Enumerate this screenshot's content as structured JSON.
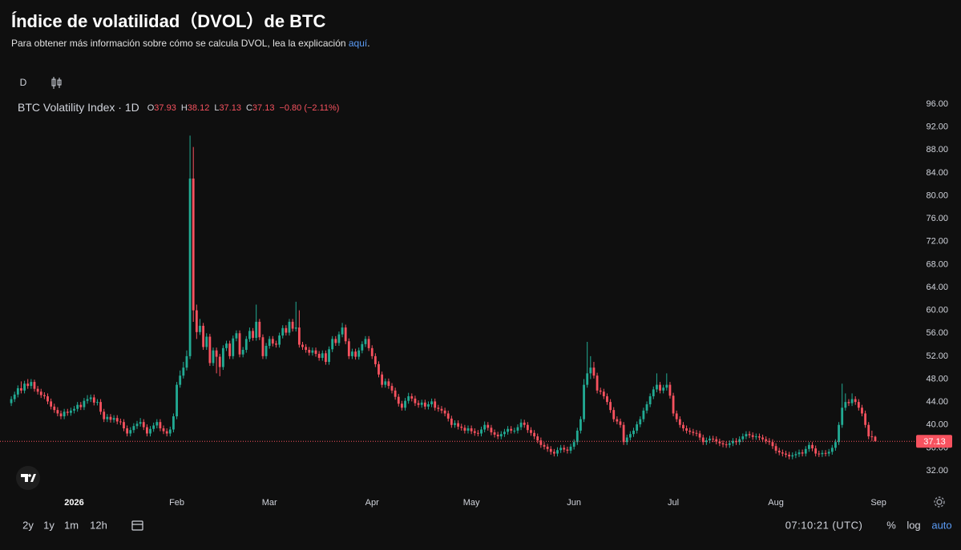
{
  "header": {
    "title": "Índice de volatilidad（DVOL）de BTC",
    "note": "Para obtener más información sobre cómo se calcula DVOL, lea la explicación ",
    "link": "aquí",
    "note_end": "."
  },
  "toolbar": {
    "interval": "D"
  },
  "chart_data": {
    "type": "candlestick",
    "title": "BTC Volatility Index · 1D",
    "legend_labels": [
      "O",
      "H",
      "L",
      "C"
    ],
    "change": "−0.80 (−2.11%)",
    "open": [
      43.8,
      44.5,
      45.3,
      46.4,
      46.0,
      47.2,
      46.8,
      47.5,
      46.3,
      45.8,
      45.2,
      45.0,
      44.1,
      43.2,
      42.6,
      42.0,
      41.5,
      42.3,
      42.1,
      42.5,
      42.8,
      43.5,
      43.1,
      44.2,
      44.5,
      44.8,
      43.9,
      44.0,
      42.3,
      41.0,
      41.4,
      40.9,
      41.2,
      40.6,
      40.5,
      39.4,
      38.5,
      39.1,
      39.8,
      40.2,
      40.5,
      39.6,
      38.5,
      39.3,
      39.9,
      40.5,
      39.4,
      38.9,
      38.5,
      39.2,
      41.5,
      47.0,
      48.6,
      50.0,
      52.0,
      83.0,
      60.0,
      56.2,
      57.3,
      53.6,
      55.4,
      50.8,
      53.0,
      51.9,
      50.1,
      53.4,
      54.2,
      52.0,
      55.1,
      56.0,
      52.3,
      53.1,
      55.0,
      56.4,
      55.2,
      58.0,
      55.3,
      52.0,
      53.8,
      55.0,
      54.2,
      54.0,
      55.6,
      56.9,
      56.1,
      58.0,
      56.8,
      57.0,
      54.0,
      53.6,
      53.1,
      52.6,
      53.0,
      52.4,
      51.7,
      52.5,
      51.0,
      53.2,
      55.0,
      54.3,
      55.8,
      57.0,
      54.6,
      52.0,
      52.8,
      51.9,
      53.0,
      54.1,
      55.0,
      53.4,
      52.0,
      50.6,
      48.8,
      47.0,
      47.6,
      46.8,
      46.0,
      44.9,
      43.7,
      43.0,
      44.2,
      45.0,
      44.6,
      43.8,
      43.5,
      43.9,
      43.2,
      43.6,
      44.1,
      43.0,
      42.8,
      42.5,
      42.0,
      41.1,
      40.0,
      40.3,
      39.7,
      39.5,
      39.0,
      39.4,
      38.9,
      38.6,
      38.5,
      39.2,
      40.0,
      39.5,
      38.7,
      38.3,
      38.0,
      38.4,
      38.8,
      39.3,
      39.0,
      39.0,
      39.6,
      40.4,
      40.0,
      39.1,
      38.6,
      38.0,
      37.3,
      36.5,
      36.2,
      35.8,
      35.3,
      35.0,
      35.6,
      36.0,
      35.7,
      35.5,
      36.2,
      37.0,
      39.0,
      41.0,
      47.0,
      49.0,
      50.0,
      48.6,
      46.0,
      45.8,
      45.0,
      44.0,
      42.6,
      41.0,
      40.6,
      40.0,
      37.0,
      37.8,
      38.4,
      39.0,
      40.1,
      41.0,
      42.5,
      43.6,
      45.0,
      46.2,
      47.0,
      46.0,
      46.5,
      47.0,
      45.1,
      42.0,
      41.0,
      40.0,
      39.4,
      39.0,
      38.8,
      38.6,
      38.5,
      37.8,
      37.0,
      37.3,
      37.6,
      37.5,
      37.1,
      36.8,
      36.6,
      36.5,
      36.8,
      37.2,
      37.0,
      37.5,
      38.0,
      38.4,
      38.2,
      37.9,
      38.0,
      37.8,
      37.5,
      37.2,
      37.0,
      36.3,
      35.5,
      35.2,
      35.0,
      34.8,
      34.5,
      34.7,
      34.9,
      35.2,
      35.0,
      35.8,
      36.5,
      35.9,
      35.0,
      34.9,
      35.1,
      35.0,
      35.3,
      36.0,
      37.0,
      40.0,
      43.0,
      44.0,
      43.8,
      44.5,
      44.0,
      43.0,
      42.0,
      40.0,
      38.0,
      37.93
    ],
    "high": [
      45.0,
      45.8,
      46.9,
      47.6,
      47.7,
      48.0,
      48.0,
      47.9,
      46.8,
      46.3,
      45.7,
      45.5,
      44.6,
      43.7,
      43.1,
      42.5,
      42.8,
      42.8,
      43.0,
      43.3,
      44.0,
      44.0,
      44.7,
      45.2,
      45.3,
      45.3,
      44.5,
      44.5,
      42.8,
      41.9,
      41.9,
      41.7,
      41.7,
      41.1,
      41.0,
      39.9,
      39.6,
      40.3,
      40.7,
      41.2,
      41.0,
      40.1,
      39.8,
      40.4,
      41.0,
      41.0,
      39.9,
      39.4,
      39.7,
      42.0,
      47.5,
      49.5,
      51.0,
      53.0,
      90.5,
      88.5,
      61.0,
      58.5,
      57.8,
      56.0,
      55.9,
      53.5,
      53.5,
      52.4,
      53.9,
      54.7,
      54.7,
      55.6,
      56.5,
      56.5,
      53.6,
      55.5,
      57.0,
      56.9,
      61.0,
      58.5,
      55.8,
      54.3,
      55.5,
      55.5,
      54.7,
      56.1,
      57.4,
      57.4,
      58.5,
      58.5,
      61.5,
      60.0,
      54.5,
      54.1,
      53.6,
      53.5,
      53.5,
      52.9,
      53.0,
      53.0,
      53.7,
      55.5,
      55.5,
      56.3,
      57.8,
      57.5,
      55.1,
      53.3,
      53.3,
      53.5,
      54.6,
      55.5,
      55.5,
      53.9,
      52.5,
      51.1,
      49.3,
      48.1,
      48.1,
      47.3,
      46.5,
      45.4,
      44.2,
      44.7,
      45.6,
      45.5,
      45.1,
      44.3,
      44.4,
      44.4,
      44.1,
      44.6,
      44.6,
      43.5,
      43.3,
      43.0,
      42.5,
      41.6,
      40.8,
      40.8,
      40.2,
      40.0,
      39.9,
      39.9,
      39.4,
      39.1,
      39.7,
      40.6,
      40.5,
      40.0,
      39.2,
      38.8,
      38.9,
      39.3,
      39.8,
      39.8,
      39.5,
      40.1,
      41.0,
      40.9,
      40.5,
      39.6,
      39.1,
      38.5,
      37.8,
      37.0,
      36.7,
      36.3,
      35.8,
      36.1,
      36.5,
      36.5,
      36.2,
      36.7,
      37.5,
      39.5,
      41.5,
      48.0,
      54.5,
      52.0,
      51.0,
      49.1,
      46.5,
      46.3,
      45.5,
      44.5,
      43.1,
      41.5,
      41.1,
      40.5,
      38.3,
      38.9,
      39.5,
      40.6,
      41.5,
      43.0,
      44.1,
      45.5,
      46.7,
      49.0,
      47.5,
      47.0,
      49.0,
      47.5,
      45.6,
      42.5,
      41.5,
      40.5,
      39.9,
      39.5,
      39.3,
      39.1,
      39.0,
      38.3,
      37.8,
      38.1,
      38.1,
      38.0,
      37.6,
      37.3,
      37.1,
      37.3,
      37.7,
      37.7,
      38.0,
      38.5,
      38.9,
      38.9,
      38.7,
      38.5,
      38.5,
      38.3,
      38.0,
      37.7,
      37.5,
      36.8,
      36.0,
      35.7,
      35.5,
      35.3,
      35.2,
      35.4,
      35.7,
      35.7,
      36.3,
      37.0,
      37.0,
      36.4,
      35.5,
      35.6,
      35.6,
      35.8,
      36.5,
      37.5,
      40.5,
      47.2,
      45.5,
      44.5,
      45.5,
      45.0,
      44.5,
      43.5,
      42.5,
      40.5,
      39.0,
      38.12
    ],
    "low": [
      43.3,
      44.0,
      44.8,
      45.5,
      45.5,
      46.3,
      46.3,
      45.8,
      45.3,
      44.7,
      44.5,
      43.6,
      42.7,
      42.1,
      41.5,
      41.0,
      41.0,
      41.6,
      41.6,
      42.0,
      42.3,
      42.6,
      42.6,
      43.7,
      44.0,
      43.4,
      43.4,
      41.8,
      40.5,
      40.5,
      40.4,
      40.4,
      40.1,
      40.0,
      38.9,
      38.0,
      38.0,
      38.6,
      39.3,
      39.7,
      39.1,
      38.0,
      38.0,
      38.8,
      39.4,
      38.9,
      38.4,
      38.0,
      38.0,
      38.7,
      41.0,
      46.5,
      48.1,
      49.5,
      51.5,
      58.0,
      55.0,
      55.7,
      53.1,
      53.1,
      50.3,
      50.3,
      49.0,
      48.5,
      49.6,
      52.9,
      51.5,
      51.5,
      54.6,
      51.8,
      51.8,
      52.6,
      54.5,
      54.7,
      54.7,
      54.8,
      51.5,
      51.5,
      53.3,
      53.7,
      53.5,
      53.5,
      55.1,
      55.6,
      55.6,
      56.3,
      56.3,
      53.5,
      53.1,
      52.6,
      52.1,
      52.1,
      51.9,
      51.2,
      51.2,
      50.5,
      50.5,
      52.7,
      53.8,
      53.8,
      55.3,
      54.1,
      51.5,
      51.5,
      51.4,
      51.4,
      52.5,
      53.6,
      52.9,
      51.5,
      50.1,
      48.3,
      46.5,
      46.5,
      46.3,
      45.5,
      44.4,
      43.2,
      42.5,
      42.5,
      43.7,
      44.1,
      43.3,
      43.0,
      43.0,
      42.7,
      42.7,
      43.1,
      42.5,
      42.3,
      42.0,
      41.5,
      40.6,
      39.5,
      39.5,
      39.2,
      39.0,
      38.5,
      38.5,
      38.4,
      38.1,
      38.0,
      38.0,
      38.7,
      39.0,
      38.2,
      37.8,
      37.5,
      37.5,
      37.9,
      38.3,
      38.5,
      38.5,
      38.5,
      39.1,
      39.5,
      38.6,
      38.1,
      37.5,
      36.8,
      36.0,
      35.7,
      35.3,
      34.8,
      34.5,
      34.5,
      35.1,
      35.2,
      35.0,
      35.0,
      35.7,
      36.5,
      38.5,
      40.5,
      46.5,
      48.0,
      48.1,
      45.5,
      45.3,
      44.5,
      43.5,
      42.1,
      40.5,
      40.1,
      39.5,
      36.5,
      36.5,
      37.3,
      37.9,
      38.5,
      39.6,
      40.5,
      42.0,
      43.1,
      44.5,
      45.7,
      45.5,
      45.5,
      46.0,
      44.6,
      41.5,
      40.5,
      39.5,
      38.9,
      38.5,
      38.3,
      38.1,
      38.0,
      37.3,
      36.5,
      36.5,
      36.8,
      37.0,
      36.6,
      36.3,
      36.1,
      36.0,
      36.0,
      36.3,
      36.5,
      36.5,
      37.0,
      37.5,
      37.7,
      37.4,
      37.4,
      37.3,
      37.0,
      36.7,
      36.5,
      35.8,
      35.0,
      34.7,
      34.5,
      34.3,
      34.0,
      34.0,
      34.2,
      34.4,
      34.5,
      34.5,
      35.3,
      35.4,
      34.5,
      34.4,
      34.4,
      34.5,
      34.5,
      34.8,
      35.5,
      36.5,
      39.5,
      42.5,
      43.3,
      43.3,
      43.5,
      42.5,
      41.5,
      39.5,
      37.5,
      37.2,
      37.13
    ],
    "close": [
      44.5,
      45.3,
      46.4,
      46.0,
      47.2,
      46.8,
      47.5,
      46.3,
      45.8,
      45.2,
      45.0,
      44.1,
      43.2,
      42.6,
      42.0,
      41.5,
      42.3,
      42.1,
      42.5,
      42.8,
      43.5,
      43.1,
      44.2,
      44.5,
      44.8,
      43.9,
      44.0,
      42.3,
      41.0,
      41.4,
      40.9,
      41.2,
      40.6,
      40.5,
      39.4,
      38.5,
      39.1,
      39.8,
      40.2,
      40.5,
      39.6,
      38.5,
      39.3,
      39.9,
      40.5,
      39.4,
      38.9,
      38.5,
      39.2,
      41.5,
      47.0,
      48.6,
      50.0,
      52.0,
      83.0,
      60.0,
      56.2,
      57.3,
      53.6,
      55.4,
      50.8,
      53.0,
      51.9,
      50.1,
      53.4,
      54.2,
      52.0,
      55.1,
      56.0,
      52.3,
      53.1,
      55.0,
      56.4,
      55.2,
      58.0,
      55.3,
      52.0,
      53.8,
      55.0,
      54.2,
      54.0,
      55.6,
      56.9,
      56.1,
      58.0,
      56.8,
      57.0,
      54.0,
      53.6,
      53.1,
      52.6,
      53.0,
      52.4,
      51.7,
      52.5,
      51.0,
      53.2,
      55.0,
      54.3,
      55.8,
      57.0,
      54.6,
      52.0,
      52.8,
      51.9,
      53.0,
      54.1,
      55.0,
      53.4,
      52.0,
      50.6,
      48.8,
      47.0,
      47.6,
      46.8,
      46.0,
      44.9,
      43.7,
      43.0,
      44.2,
      45.0,
      44.6,
      43.8,
      43.5,
      43.9,
      43.2,
      43.6,
      44.1,
      43.0,
      42.8,
      42.5,
      42.0,
      41.1,
      40.0,
      40.3,
      39.7,
      39.5,
      39.0,
      39.4,
      38.9,
      38.6,
      38.5,
      39.2,
      40.0,
      39.5,
      38.7,
      38.3,
      38.0,
      38.4,
      38.8,
      39.3,
      39.0,
      39.0,
      39.6,
      40.4,
      40.0,
      39.1,
      38.6,
      38.0,
      37.3,
      36.5,
      36.2,
      35.8,
      35.3,
      35.0,
      35.6,
      36.0,
      35.7,
      35.5,
      36.2,
      37.0,
      39.0,
      41.0,
      47.0,
      49.0,
      50.0,
      48.6,
      46.0,
      45.8,
      45.0,
      44.0,
      42.6,
      41.0,
      40.6,
      40.0,
      37.0,
      37.8,
      38.4,
      39.0,
      40.1,
      41.0,
      42.5,
      43.6,
      45.0,
      46.2,
      47.0,
      46.0,
      46.5,
      47.0,
      45.1,
      42.0,
      41.0,
      40.0,
      39.4,
      39.0,
      38.8,
      38.6,
      38.5,
      37.8,
      37.0,
      37.3,
      37.6,
      37.5,
      37.1,
      36.8,
      36.6,
      36.5,
      36.8,
      37.2,
      37.0,
      37.5,
      38.0,
      38.4,
      38.2,
      37.9,
      38.0,
      37.8,
      37.5,
      37.2,
      37.0,
      36.3,
      35.5,
      35.2,
      35.0,
      34.8,
      34.5,
      34.7,
      34.9,
      35.2,
      35.0,
      35.8,
      36.5,
      35.9,
      35.0,
      34.9,
      35.1,
      35.0,
      35.3,
      36.0,
      37.0,
      40.0,
      43.0,
      44.0,
      43.8,
      44.5,
      44.0,
      43.0,
      42.0,
      40.0,
      38.0,
      37.93,
      37.13
    ],
    "up_color": "#22ab94",
    "down_color": "#f7525f",
    "xlim": [
      -0.5,
      262.5
    ],
    "xticks": [
      {
        "value": 19,
        "label": "2026"
      },
      {
        "value": 50,
        "label": "Feb"
      },
      {
        "value": 78,
        "label": "Mar"
      },
      {
        "value": 109,
        "label": "Apr"
      },
      {
        "value": 139,
        "label": "May"
      },
      {
        "value": 170,
        "label": "Jun"
      },
      {
        "value": 200,
        "label": "Jul"
      },
      {
        "value": 231,
        "label": "Aug"
      },
      {
        "value": 262,
        "label": "Sep"
      }
    ],
    "ylim": [
      32,
      96
    ],
    "yticks": [
      {
        "value": 32,
        "label": "32.00"
      },
      {
        "value": 36,
        "label": "36.00"
      },
      {
        "value": 40,
        "label": "40.00"
      },
      {
        "value": 44,
        "label": "44.00"
      },
      {
        "value": 48,
        "label": "48.00"
      },
      {
        "value": 52,
        "label": "52.00"
      },
      {
        "value": 56,
        "label": "56.00"
      },
      {
        "value": 60,
        "label": "60.00"
      },
      {
        "value": 64,
        "label": "64.00"
      },
      {
        "value": 68,
        "label": "68.00"
      },
      {
        "value": 72,
        "label": "72.00"
      },
      {
        "value": 76,
        "label": "76.00"
      },
      {
        "value": 80,
        "label": "80.00"
      },
      {
        "value": 84,
        "label": "84.00"
      },
      {
        "value": 88,
        "label": "88.00"
      },
      {
        "value": 92,
        "label": "92.00"
      },
      {
        "value": 96,
        "label": "96.00"
      }
    ],
    "grid": false
  },
  "footer": {
    "ranges": [
      "2y",
      "1y",
      "1m",
      "12h"
    ],
    "clock": "07:10:21 (UTC)",
    "options": [
      "%",
      "log",
      "auto"
    ]
  }
}
